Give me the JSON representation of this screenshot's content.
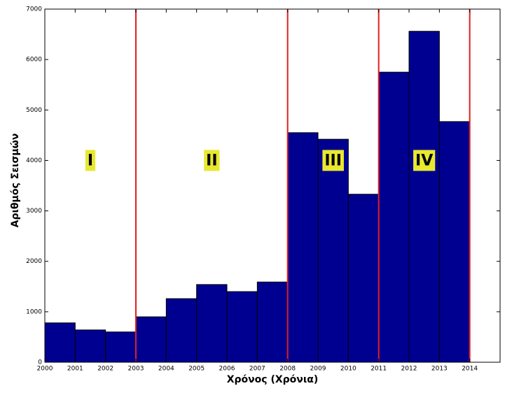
{
  "chart_data": {
    "type": "histogram",
    "xlabel": "Χρόνος (Χρόνια)",
    "ylabel": "Αριθμός Σεισμών",
    "bins": [
      2000,
      2001,
      2002,
      2003,
      2004,
      2005,
      2006,
      2007,
      2008,
      2009,
      2010,
      2011,
      2012,
      2013,
      2014
    ],
    "counts": [
      780,
      640,
      600,
      900,
      1260,
      1540,
      1400,
      1590,
      4550,
      4420,
      3330,
      5750,
      6560,
      4770
    ],
    "color": "#000090",
    "edge_color": "#000000",
    "xlim": [
      2000,
      2015
    ],
    "ylim": [
      0,
      7000
    ],
    "xticks": [
      2000,
      2001,
      2002,
      2003,
      2004,
      2005,
      2006,
      2007,
      2008,
      2009,
      2010,
      2011,
      2012,
      2013,
      2014
    ],
    "yticks": [
      0,
      1000,
      2000,
      3000,
      4000,
      5000,
      6000,
      7000
    ],
    "boundaries": [
      2003,
      2008,
      2011,
      2014
    ],
    "boundary_color": "#e02020",
    "regions": [
      "I",
      "II",
      "III",
      "IV"
    ],
    "region_color": "#e8e830"
  }
}
